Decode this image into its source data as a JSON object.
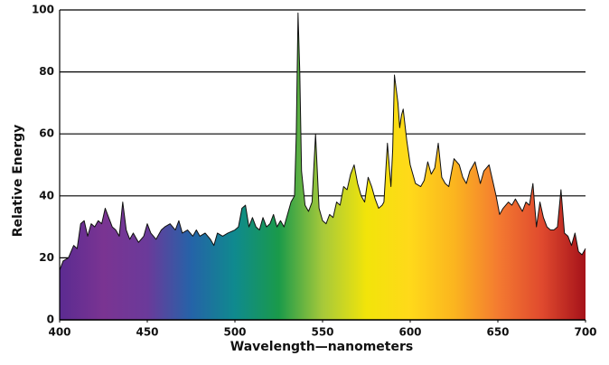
{
  "chart_data": {
    "type": "area",
    "x_label": "Wavelength—nanometers",
    "y_label": "Relative Energy",
    "x": [
      400,
      402,
      405,
      408,
      410,
      412,
      414,
      416,
      418,
      420,
      422,
      424,
      426,
      428,
      430,
      432,
      434,
      436,
      438,
      440,
      442,
      445,
      448,
      450,
      452,
      455,
      458,
      460,
      463,
      466,
      468,
      470,
      473,
      476,
      478,
      480,
      483,
      486,
      488,
      490,
      493,
      496,
      500,
      502,
      504,
      506,
      508,
      510,
      512,
      514,
      516,
      518,
      520,
      522,
      524,
      526,
      528,
      530,
      532,
      534,
      535,
      536,
      537,
      538,
      540,
      542,
      544,
      546,
      548,
      550,
      552,
      554,
      556,
      558,
      560,
      562,
      564,
      566,
      568,
      570,
      572,
      574,
      576,
      578,
      580,
      582,
      584,
      585,
      587,
      589,
      590,
      591,
      593,
      594,
      595,
      596,
      598,
      600,
      603,
      606,
      608,
      610,
      612,
      614,
      616,
      618,
      620,
      622,
      625,
      628,
      630,
      632,
      634,
      637,
      640,
      642,
      645,
      647,
      649,
      651,
      653,
      656,
      658,
      660,
      662,
      664,
      666,
      668,
      670,
      672,
      674,
      676,
      678,
      680,
      682,
      684,
      686,
      688,
      690,
      692,
      694,
      696,
      698,
      700
    ],
    "values": [
      16,
      19,
      20,
      24,
      23,
      31,
      32,
      27,
      31,
      30,
      32,
      31,
      36,
      33,
      30,
      29,
      27,
      38,
      29,
      26,
      28,
      25,
      27,
      31,
      28,
      26,
      29,
      30,
      31,
      29,
      32,
      28,
      29,
      27,
      29,
      27,
      28,
      26,
      24,
      28,
      27,
      28,
      29,
      30,
      36,
      37,
      30,
      33,
      30,
      29,
      33,
      30,
      31,
      34,
      30,
      32,
      30,
      34,
      38,
      40,
      60,
      99,
      80,
      48,
      37,
      35,
      38,
      60,
      36,
      32,
      31,
      34,
      33,
      38,
      37,
      43,
      42,
      47,
      50,
      44,
      40,
      38,
      46,
      43,
      39,
      36,
      37,
      38,
      57,
      43,
      55,
      79,
      70,
      62,
      66,
      68,
      58,
      50,
      44,
      43,
      45,
      51,
      47,
      49,
      57,
      46,
      44,
      43,
      52,
      50,
      46,
      44,
      48,
      51,
      44,
      48,
      50,
      45,
      40,
      34,
      36,
      38,
      37,
      39,
      37,
      35,
      38,
      37,
      44,
      30,
      38,
      33,
      30,
      29,
      29,
      30,
      42,
      28,
      27,
      24,
      28,
      22,
      21,
      23
    ],
    "xlim": [
      400,
      700
    ],
    "ylim": [
      0,
      100
    ],
    "xticks": [
      400,
      450,
      500,
      550,
      600,
      650,
      700
    ],
    "yticks": [
      0,
      20,
      40,
      60,
      80,
      100
    ],
    "grid": true,
    "line_color": "#111111",
    "colors": [
      "#5b2b91",
      "#7a3492",
      "#6b3a9a",
      "#2563a8",
      "#0f8a8e",
      "#1a9a4a",
      "#a6c93a",
      "#f2e40a",
      "#ffd91a",
      "#fbb51f",
      "#f47b30",
      "#e04a2e",
      "#a5121a"
    ]
  }
}
